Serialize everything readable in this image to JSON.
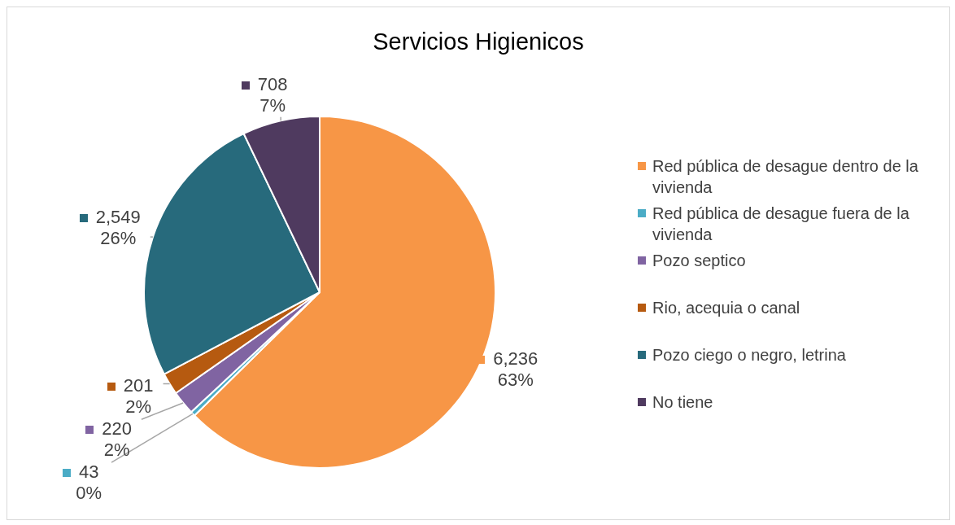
{
  "chart_data": {
    "type": "pie",
    "title": "Servicios Higienicos",
    "categories": [
      "Red pública de desague dentro de la vivienda",
      "Red pública de desague fuera de la vivienda",
      "Pozo septico",
      "Rio, acequia o canal",
      "Pozo ciego o negro, letrina",
      "No tiene"
    ],
    "values": [
      6236,
      43,
      220,
      201,
      2549,
      708
    ],
    "colors": [
      "#f79646",
      "#4bacc6",
      "#8064a2",
      "#b65a10",
      "#276a7c",
      "#4f3a5f"
    ],
    "value_labels": [
      "6,236\n63%",
      "43\n0%",
      "220\n2%",
      "201\n2%",
      "2,549\n26%",
      "708\n7%"
    ],
    "legend": "right"
  }
}
